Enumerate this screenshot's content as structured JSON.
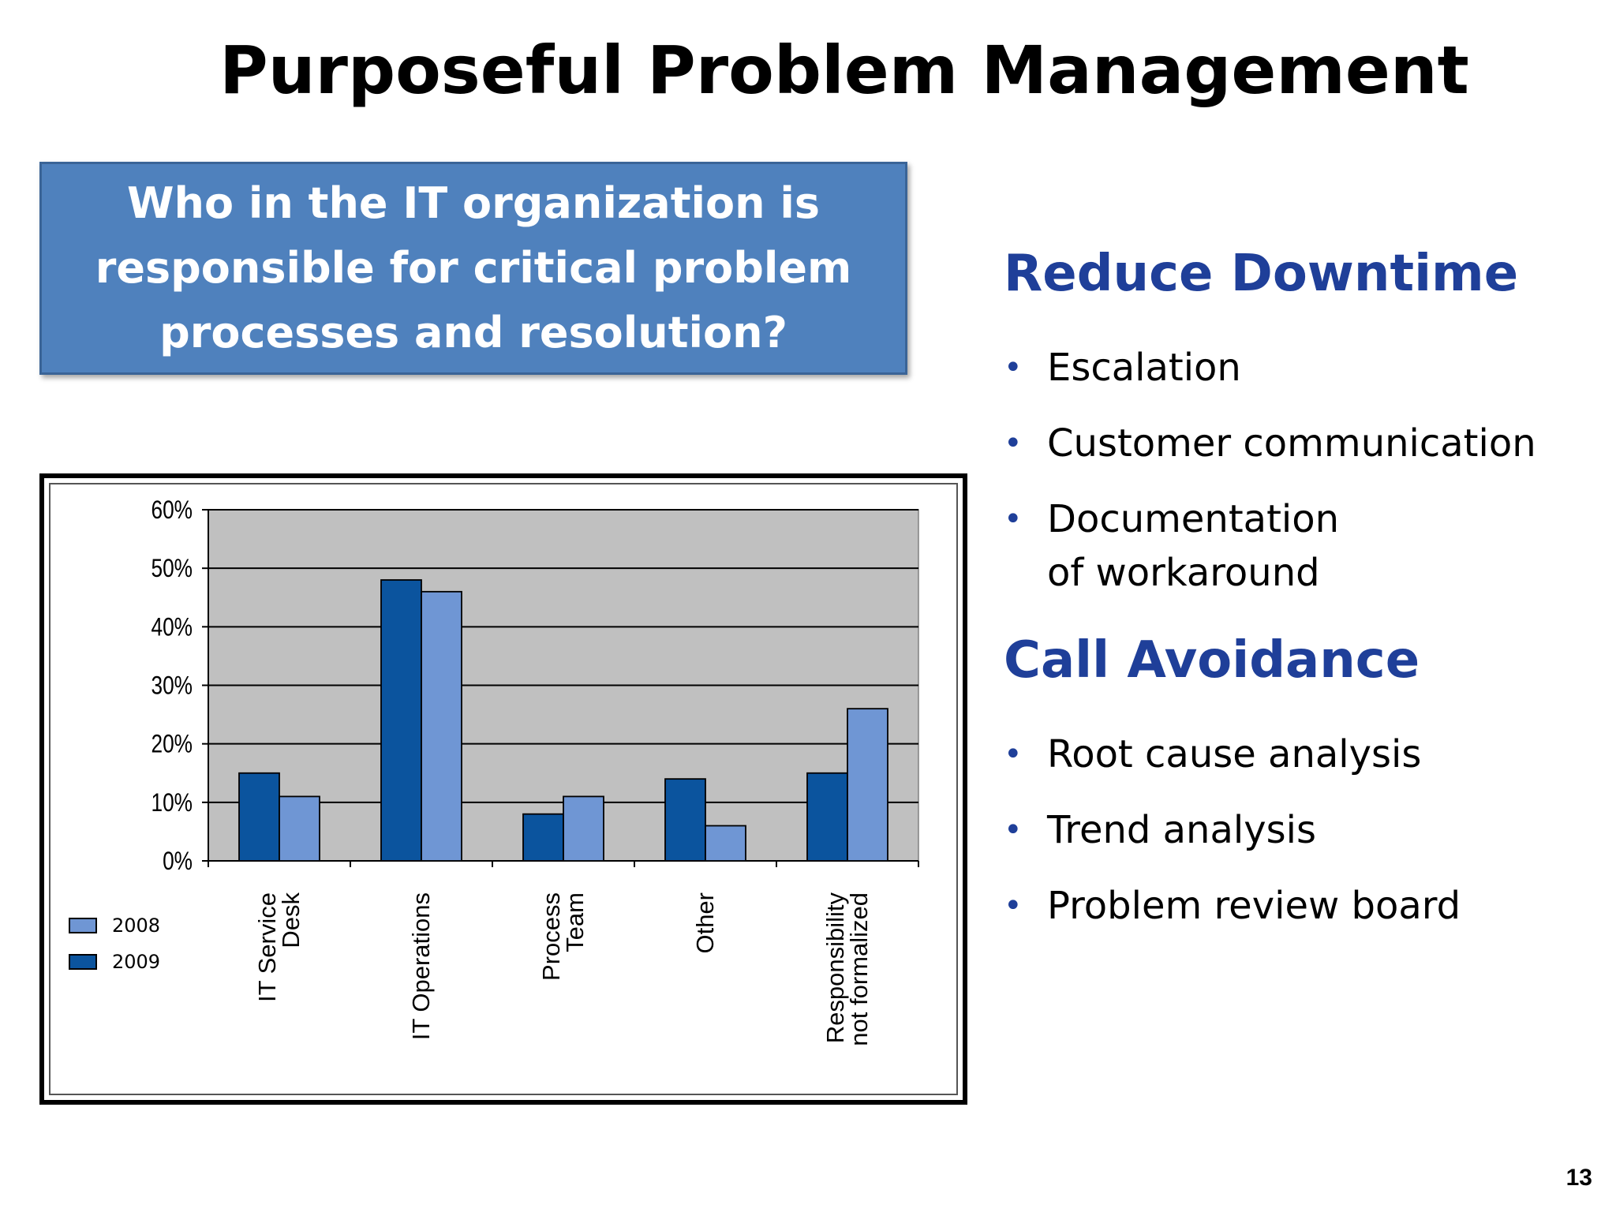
{
  "slide": {
    "title": "Purposeful Problem Management",
    "question": "Who in the IT organization is responsible for critical problem processes and resolution?",
    "page_number": "13"
  },
  "right_panel": {
    "sections": [
      {
        "heading": "Reduce Downtime",
        "bullets": [
          [
            "Escalation"
          ],
          [
            "Customer communication"
          ],
          [
            "Documentation",
            "of workaround"
          ]
        ]
      },
      {
        "heading": "Call Avoidance",
        "bullets": [
          [
            "Root cause analysis"
          ],
          [
            "Trend analysis"
          ],
          [
            "Problem review board"
          ]
        ]
      }
    ]
  },
  "chart_data": {
    "type": "bar",
    "title": "",
    "xlabel": "",
    "ylabel": "",
    "ylim": [
      0,
      60
    ],
    "y_ticks": [
      0,
      10,
      20,
      30,
      40,
      50,
      60
    ],
    "y_tick_format": "%",
    "grid": true,
    "legend_position": "bottom-left",
    "categories": [
      [
        "IT Service",
        "Desk"
      ],
      [
        "IT Operations"
      ],
      [
        "Process",
        "Team"
      ],
      [
        "Other"
      ],
      [
        "Responsibility",
        "not formalized"
      ]
    ],
    "series": [
      {
        "name": "2009",
        "values": [
          15,
          48,
          8,
          14,
          15
        ]
      },
      {
        "name": "2008",
        "values": [
          11,
          46,
          11,
          6,
          26
        ]
      }
    ],
    "legend": [
      "2008",
      "2009"
    ],
    "colors": {
      "2009": "#0b549e",
      "2008": "#6f96d4",
      "plot_background": "#c0c0c0",
      "grid": "#000000"
    }
  }
}
